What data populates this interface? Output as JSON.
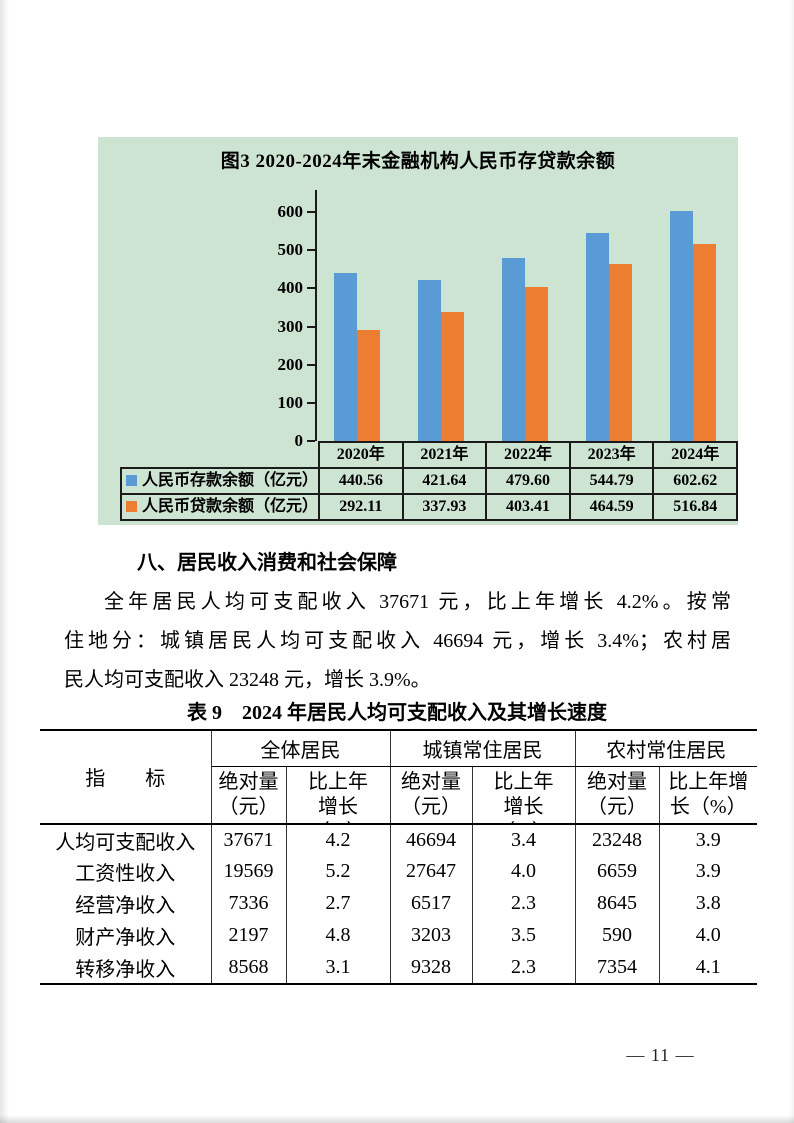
{
  "chart_data": {
    "type": "bar",
    "title": "图3  2020-2024年末金融机构人民币存贷款余额",
    "categories": [
      "2020年",
      "2021年",
      "2022年",
      "2023年",
      "2024年"
    ],
    "series": [
      {
        "name": "人民币存款余额（亿元）",
        "color": "#5b9bd5",
        "values": [
          440.56,
          421.64,
          479.6,
          544.79,
          602.62
        ]
      },
      {
        "name": "人民币贷款余额（亿元）",
        "color": "#ed7d31",
        "values": [
          292.11,
          337.93,
          403.41,
          464.59,
          516.84
        ]
      }
    ],
    "ylim": [
      0,
      600
    ],
    "ytick_step": 100,
    "grid": false,
    "legend_position": "bottom-table",
    "plot_bg": "#cee4d2"
  },
  "section": {
    "heading": "八、居民收入消费和社会保障",
    "paragraph_lines": [
      "全年居民人均可支配收入 37671 元，比上年增长 4.2%。按常",
      "住地分：城镇居民人均可支配收入 46694 元，增长 3.4%；农村居",
      "民人均可支配收入 23248 元，增长 3.9%。"
    ]
  },
  "table9": {
    "title": "表 9　2024 年居民人均可支配收入及其增长速度",
    "indicator_header": "指　　标",
    "groups": [
      {
        "label": "全体居民",
        "sub": [
          [
            "绝对量",
            "（元）"
          ],
          [
            "比上年",
            "增长",
            "（%）"
          ]
        ]
      },
      {
        "label": "城镇常住居民",
        "sub": [
          [
            "绝对量",
            "（元）"
          ],
          [
            "比上年",
            "增长",
            "（%）"
          ]
        ]
      },
      {
        "label": "农村常住居民",
        "sub": [
          [
            "绝对量",
            "（元）"
          ],
          [
            "比上年增",
            "长（%）"
          ]
        ]
      }
    ],
    "rows": [
      {
        "label": "人均可支配收入",
        "values": [
          "37671",
          "4.2",
          "46694",
          "3.4",
          "23248",
          "3.9"
        ]
      },
      {
        "label": "工资性收入",
        "values": [
          "19569",
          "5.2",
          "27647",
          "4.0",
          "6659",
          "3.9"
        ]
      },
      {
        "label": "经营净收入",
        "values": [
          "7336",
          "2.7",
          "6517",
          "2.3",
          "8645",
          "3.8"
        ]
      },
      {
        "label": "财产净收入",
        "values": [
          "2197",
          "4.8",
          "3203",
          "3.5",
          "590",
          "4.0"
        ]
      },
      {
        "label": "转移净收入",
        "values": [
          "8568",
          "3.1",
          "9328",
          "2.3",
          "7354",
          "4.1"
        ]
      }
    ]
  },
  "page": {
    "number_label": "— 11 —"
  }
}
